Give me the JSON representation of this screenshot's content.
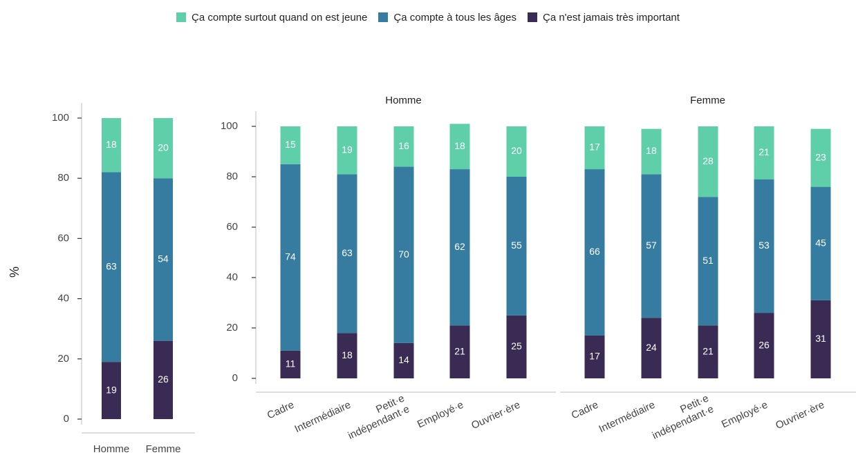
{
  "legend": {
    "items": [
      {
        "label": "Ça compte surtout quand on est jeune",
        "color": "#5fcfaa"
      },
      {
        "label": "Ça compte à tous les âges",
        "color": "#367ca1"
      },
      {
        "label": "Ça n'est jamais très important",
        "color": "#3a2b54"
      }
    ]
  },
  "chart_data": [
    {
      "type": "bar",
      "stacked": true,
      "title": "",
      "xlabel": "",
      "ylabel": "%",
      "ylim": [
        0,
        100
      ],
      "yticks": [
        0,
        20,
        40,
        60,
        80,
        100
      ],
      "categories": [
        "Homme",
        "Femme"
      ],
      "series": [
        {
          "name": "Ça n'est jamais très important",
          "values": [
            19,
            26
          ]
        },
        {
          "name": "Ça compte à tous les âges",
          "values": [
            63,
            54
          ]
        },
        {
          "name": "Ça compte surtout quand on est jeune",
          "values": [
            18,
            20
          ]
        }
      ]
    },
    {
      "type": "bar",
      "stacked": true,
      "title": "Homme",
      "xlabel": "",
      "ylabel": "",
      "ylim": [
        0,
        100
      ],
      "yticks": [
        0,
        20,
        40,
        60,
        80,
        100
      ],
      "categories": [
        "Cadre",
        "Intermédiaire",
        "Petit·e indépendant·e",
        "Employé·e",
        "Ouvrier·ère"
      ],
      "series": [
        {
          "name": "Ça n'est jamais très important",
          "values": [
            11,
            18,
            14,
            21,
            25
          ]
        },
        {
          "name": "Ça compte à tous les âges",
          "values": [
            74,
            63,
            70,
            62,
            55
          ]
        },
        {
          "name": "Ça compte surtout quand on est jeune",
          "values": [
            15,
            19,
            16,
            18,
            20
          ]
        }
      ]
    },
    {
      "type": "bar",
      "stacked": true,
      "title": "Femme",
      "xlabel": "",
      "ylabel": "",
      "ylim": [
        0,
        100
      ],
      "categories": [
        "Cadre",
        "Intermédiaire",
        "Petit·e indépendant·e",
        "Employé·e",
        "Ouvrier·ère"
      ],
      "series": [
        {
          "name": "Ça n'est jamais très important",
          "values": [
            17,
            24,
            21,
            26,
            31
          ]
        },
        {
          "name": "Ça compte à tous les âges",
          "values": [
            66,
            57,
            51,
            53,
            45
          ]
        },
        {
          "name": "Ça compte surtout quand on est jeune",
          "values": [
            17,
            18,
            28,
            21,
            23
          ]
        }
      ]
    }
  ]
}
